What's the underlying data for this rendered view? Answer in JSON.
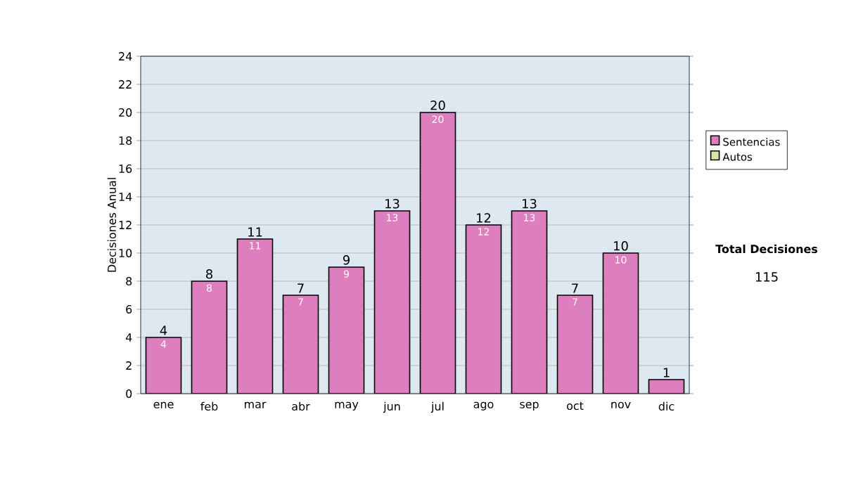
{
  "chart_data": {
    "type": "bar",
    "ylabel": "Decisiones Anual",
    "categories": [
      "ene",
      "feb",
      "mar",
      "abr",
      "may",
      "jun",
      "jul",
      "ago",
      "sep",
      "oct",
      "nov",
      "dic"
    ],
    "series": [
      {
        "name": "Sentencias",
        "color": "#dd7fbe",
        "values": [
          4,
          8,
          11,
          7,
          9,
          13,
          20,
          12,
          13,
          7,
          10,
          1
        ],
        "value_labels": [
          "4",
          "8",
          "11",
          "7",
          "9",
          "13",
          "20",
          "12",
          "13",
          "7",
          "10",
          null
        ]
      },
      {
        "name": "Autos",
        "color": "#d4e8a4",
        "values": [
          0,
          0,
          0,
          0,
          0,
          0,
          0,
          0,
          0,
          0,
          0,
          0
        ]
      }
    ],
    "stacked": true,
    "totals": [
      "4",
      "8",
      "11",
      "7",
      "9",
      "13",
      "20",
      "12",
      "13",
      "7",
      "10",
      "1"
    ],
    "ylim": [
      0,
      24
    ],
    "yticks": [
      0,
      2,
      4,
      6,
      8,
      10,
      12,
      14,
      16,
      18,
      20,
      22,
      24
    ],
    "grid": "y",
    "legend": "right",
    "annotations": [
      "Total Decisiones",
      "115"
    ]
  }
}
